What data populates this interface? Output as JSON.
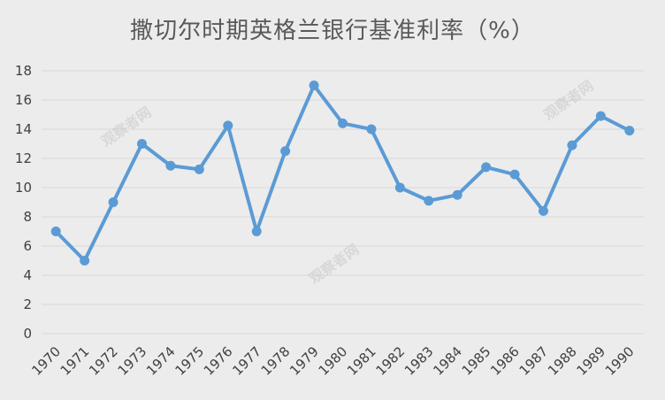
{
  "chart_data": {
    "type": "line",
    "title": "撒切尔时期英格兰银行基准利率（%）",
    "categories": [
      "1970",
      "1971",
      "1972",
      "1973",
      "1974",
      "1975",
      "1976",
      "1977",
      "1978",
      "1979",
      "1980",
      "1981",
      "1982",
      "1983",
      "1984",
      "1985",
      "1986",
      "1987",
      "1988",
      "1989",
      "1990"
    ],
    "series": [
      {
        "values": [
          7,
          5,
          9,
          13,
          11.5,
          11.25,
          14.25,
          7,
          12.5,
          17,
          14.4,
          14,
          10,
          9.1,
          9.5,
          11.4,
          10.9,
          8.4,
          12.9,
          14.9,
          13.9
        ]
      }
    ],
    "ylim": [
      0,
      18
    ],
    "yticks": [
      0,
      2,
      4,
      6,
      8,
      10,
      12,
      14,
      16,
      18
    ],
    "grid": true,
    "xlabel": "",
    "ylabel": "",
    "colors": {
      "line": "#5b9bd5",
      "grid": "#d9d9d9",
      "background": "#ececec"
    }
  },
  "watermark_text": "观察者网"
}
